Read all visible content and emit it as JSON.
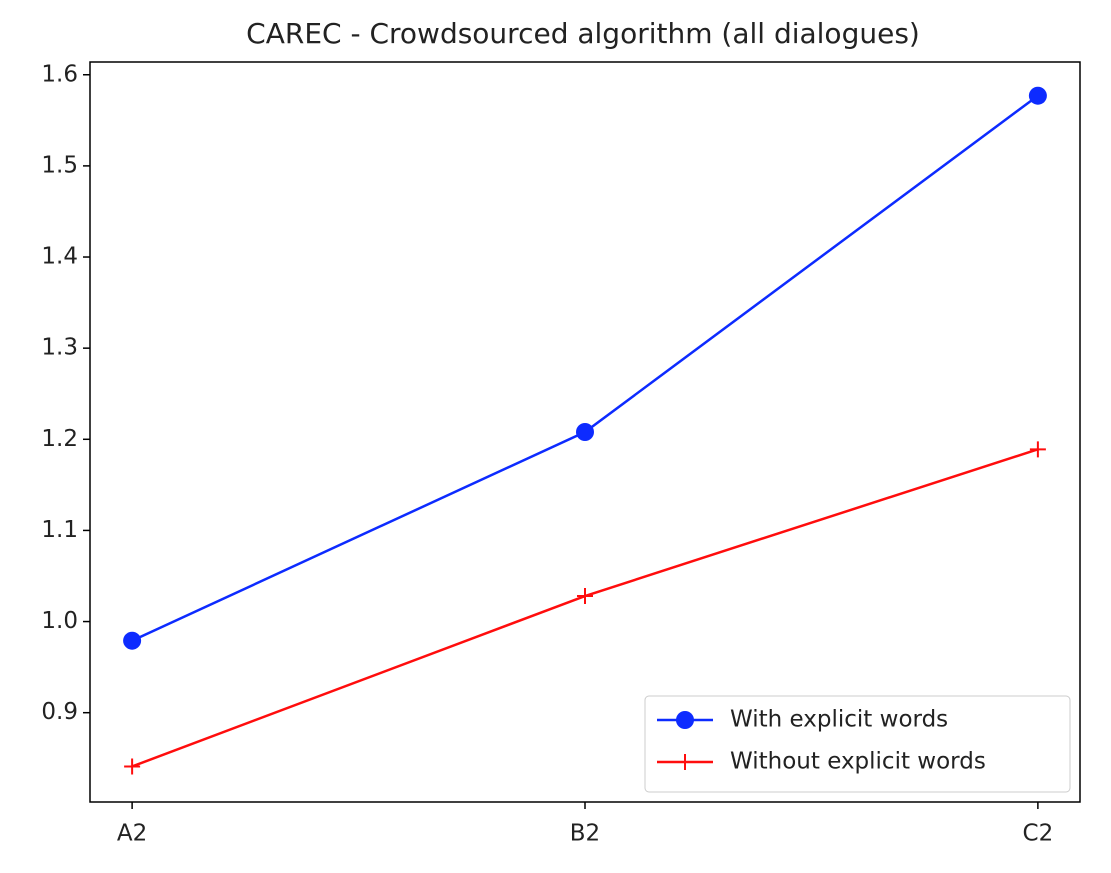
{
  "chart_data": {
    "type": "line",
    "title": "CAREC - Crowdsourced algorithm (all dialogues)",
    "categories": [
      "A2",
      "B2",
      "C2"
    ],
    "series": [
      {
        "name": "With explicit words",
        "color": "#0d2bff",
        "marker": "circle",
        "values": [
          0.979,
          1.208,
          1.577
        ]
      },
      {
        "name": "Without explicit words",
        "color": "#ff0d0d",
        "marker": "plus",
        "values": [
          0.841,
          1.028,
          1.189
        ]
      }
    ],
    "ylim": [
      0.802,
      1.614
    ],
    "yticks": [
      0.9,
      {
        "value": 1,
        "label": "1.0"
      },
      1.1,
      1.2,
      1.3,
      1.4,
      1.5,
      1.6
    ],
    "legend": "lower right",
    "grid": false
  }
}
